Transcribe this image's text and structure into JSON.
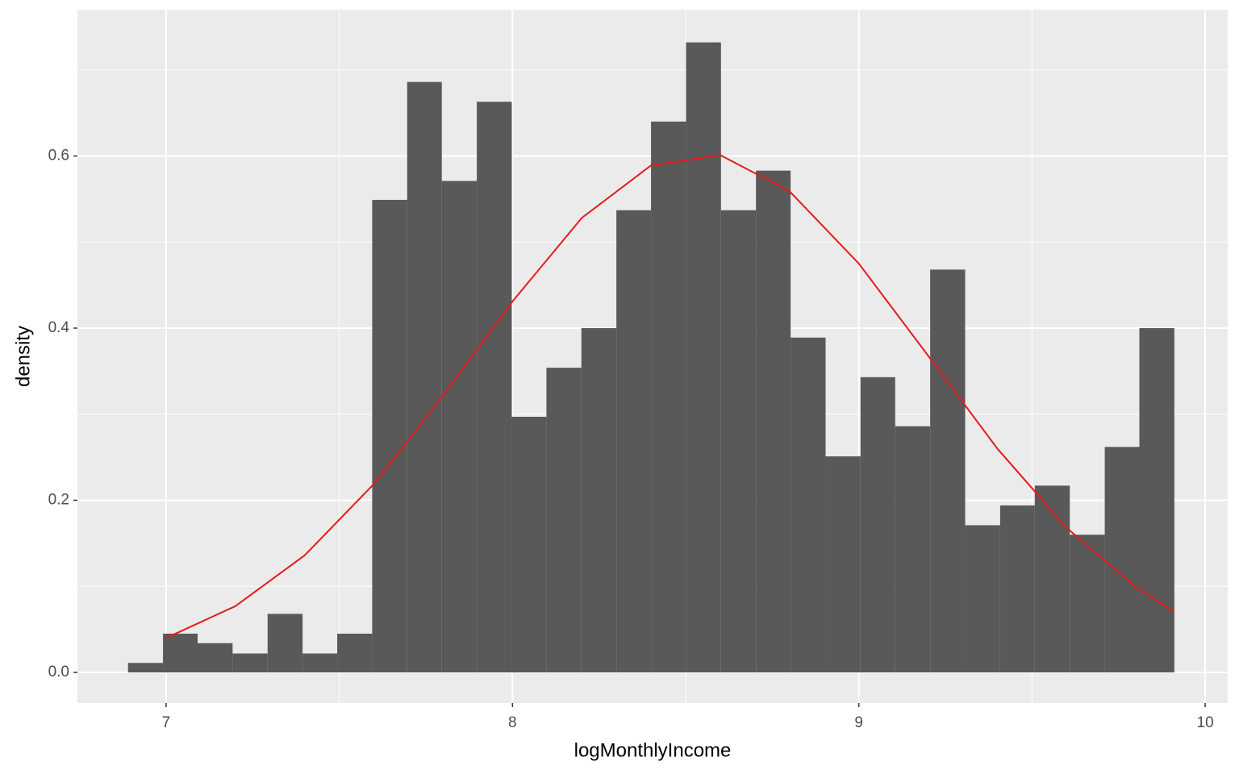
{
  "chart_data": {
    "type": "histogram",
    "xlabel": "logMonthlyIncome",
    "ylabel": "density",
    "color": "#595959",
    "bins": [
      6.89,
      6.991,
      7.091,
      7.192,
      7.293,
      7.394,
      7.494,
      7.595,
      7.696,
      7.796,
      7.897,
      7.998,
      8.098,
      8.199,
      8.3,
      8.4,
      8.501,
      8.602,
      8.703,
      8.803,
      8.904,
      9.005,
      9.105,
      9.206,
      9.307,
      9.408,
      9.508,
      9.609,
      9.71,
      9.81,
      9.911
    ],
    "values": [
      0.011,
      0.045,
      0.034,
      0.022,
      0.068,
      0.022,
      0.045,
      0.549,
      0.686,
      0.571,
      0.663,
      0.297,
      0.354,
      0.4,
      0.537,
      0.64,
      0.732,
      0.537,
      0.583,
      0.389,
      0.251,
      0.343,
      0.286,
      0.468,
      0.171,
      0.194,
      0.217,
      0.16,
      0.262,
      0.4
    ],
    "overlay": {
      "type": "line",
      "color": "#e41a1c",
      "x": [
        7.0,
        7.2,
        7.4,
        7.6,
        7.8,
        8.0,
        8.2,
        8.4,
        8.6,
        8.8,
        9.0,
        9.2,
        9.4,
        9.6,
        9.8,
        9.91
      ],
      "values": [
        0.04,
        0.077,
        0.136,
        0.219,
        0.322,
        0.431,
        0.528,
        0.589,
        0.601,
        0.559,
        0.475,
        0.368,
        0.26,
        0.168,
        0.099,
        0.071
      ]
    },
    "xlim": [
      6.744,
      10.065
    ],
    "ylim": [
      -0.0356,
      0.77
    ],
    "xticks": [
      7,
      8,
      9,
      10
    ],
    "yticks": [
      {
        "value": 0,
        "label": "0.0"
      },
      0.2,
      0.4,
      0.6
    ],
    "x_minor_grid": [
      7.5,
      8.5,
      9.5
    ],
    "y_minor_grid": [
      0.1,
      0.3,
      0.5,
      0.7
    ],
    "grid": true
  }
}
